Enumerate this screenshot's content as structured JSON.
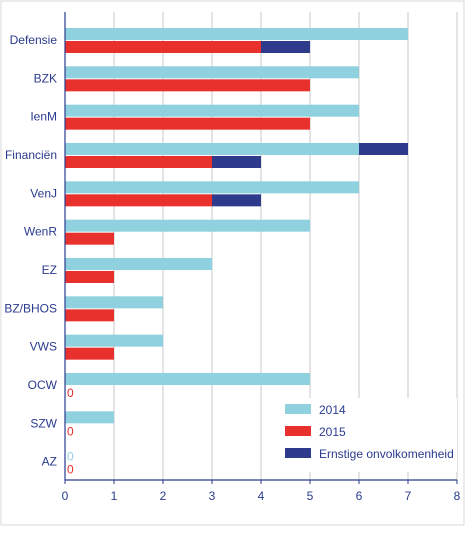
{
  "chart_data": {
    "type": "bar",
    "orientation": "horizontal",
    "categories": [
      "Defensie",
      "BZK",
      "IenM",
      "Financiën",
      "VenJ",
      "WenR",
      "EZ",
      "BZ/BHOS",
      "VWS",
      "OCW",
      "SZW",
      "AZ"
    ],
    "series": [
      {
        "name": "2014",
        "color": "#8fd1de",
        "values": [
          7,
          6,
          6,
          6,
          6,
          5,
          3,
          2,
          2,
          5,
          1,
          0
        ],
        "ernstige": [
          0,
          0,
          0,
          1,
          0,
          0,
          0,
          0,
          0,
          0,
          0,
          0
        ],
        "zero_label": "0"
      },
      {
        "name": "2015",
        "color": "#e8302c",
        "values": [
          4,
          5,
          5,
          3,
          3,
          1,
          1,
          1,
          1,
          0,
          0,
          0
        ],
        "ernstige": [
          1,
          0,
          0,
          1,
          1,
          0,
          0,
          0,
          0,
          0,
          0,
          0
        ],
        "zero_label": "0"
      }
    ],
    "stack_segment": {
      "name": "Ernstige onvolkomenheid",
      "color": "#2e3a8c"
    },
    "xlim": [
      0,
      8
    ],
    "xticks": [
      "0",
      "1",
      "2",
      "3",
      "4",
      "5",
      "6",
      "7",
      "8"
    ],
    "grid": true,
    "legend_position": "bottom-right",
    "title": "",
    "xlabel": "",
    "ylabel": ""
  }
}
